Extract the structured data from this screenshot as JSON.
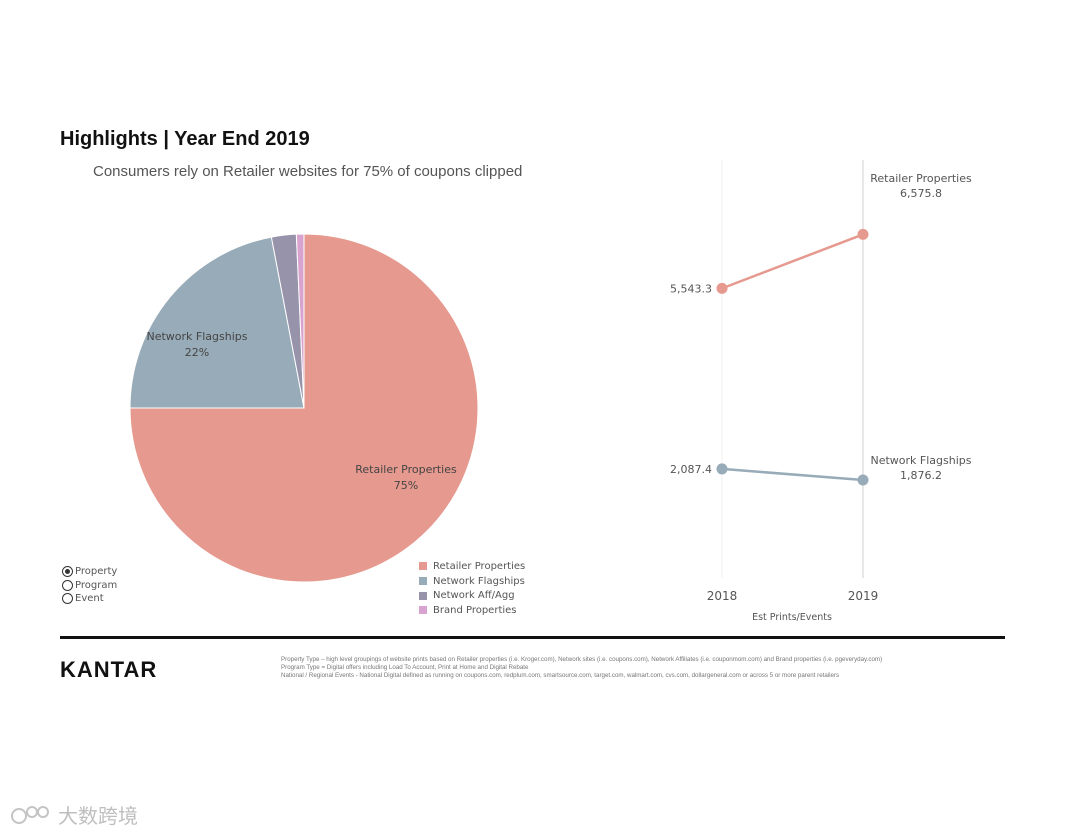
{
  "header": {
    "title": "Highlights | Year End 2019",
    "subtitle": "Consumers rely on Retailer websites for 75% of coupons clipped"
  },
  "chart_data": [
    {
      "type": "pie",
      "categories": [
        "Retailer Properties",
        "Network Flagships",
        "Network Aff/Agg",
        "Brand Properties"
      ],
      "values": [
        75,
        22,
        2.3,
        0.7
      ],
      "colors": [
        "#e6998f",
        "#98abb8",
        "#9693ab",
        "#d9a3cf"
      ],
      "data_labels": [
        {
          "name": "Retailer Properties",
          "value": "75%"
        },
        {
          "name": "Network Flagships",
          "value": "22%"
        }
      ],
      "legend": [
        "Retailer Properties",
        "Network Flagships",
        "Network Aff/Agg",
        "Brand Properties"
      ]
    },
    {
      "type": "line",
      "x": [
        "2018",
        "2019"
      ],
      "xlabel": "Est Prints/Events",
      "ylim": [
        0,
        8000
      ],
      "series": [
        {
          "name": "Retailer Properties",
          "values": [
            5543.3,
            6575.8
          ],
          "labels": [
            "5,543.3",
            "6,575.8"
          ],
          "color": "#e6998f"
        },
        {
          "name": "Network Flagships",
          "values": [
            2087.4,
            1876.2
          ],
          "labels": [
            "2,087.4",
            "1,876.2"
          ],
          "color": "#98abb8"
        }
      ]
    }
  ],
  "filter": {
    "options": [
      "Property",
      "Program",
      "Event"
    ],
    "selected": "Property"
  },
  "brand": {
    "logo": "KANTAR"
  },
  "footnotes": [
    "Property Type – high level groupings of website prints based on Retailer properties (i.e. Kroger.com), Network sites (i.e. coupons.com), Network Affiliates (i.e. couponmom.com) and Brand properties (i.e. pgeveryday.com)",
    "Program Type = Digital offers including Load To Account, Print at Home and Digital Rebate",
    "National / Regional Events - National Digital defined as running on coupons.com, redplum.com, smartsource.com, target.com, walmart.com, cvs.com, dollargeneral.com or across 5 or more parent retailers"
  ],
  "watermark": {
    "text": "大数跨境"
  }
}
